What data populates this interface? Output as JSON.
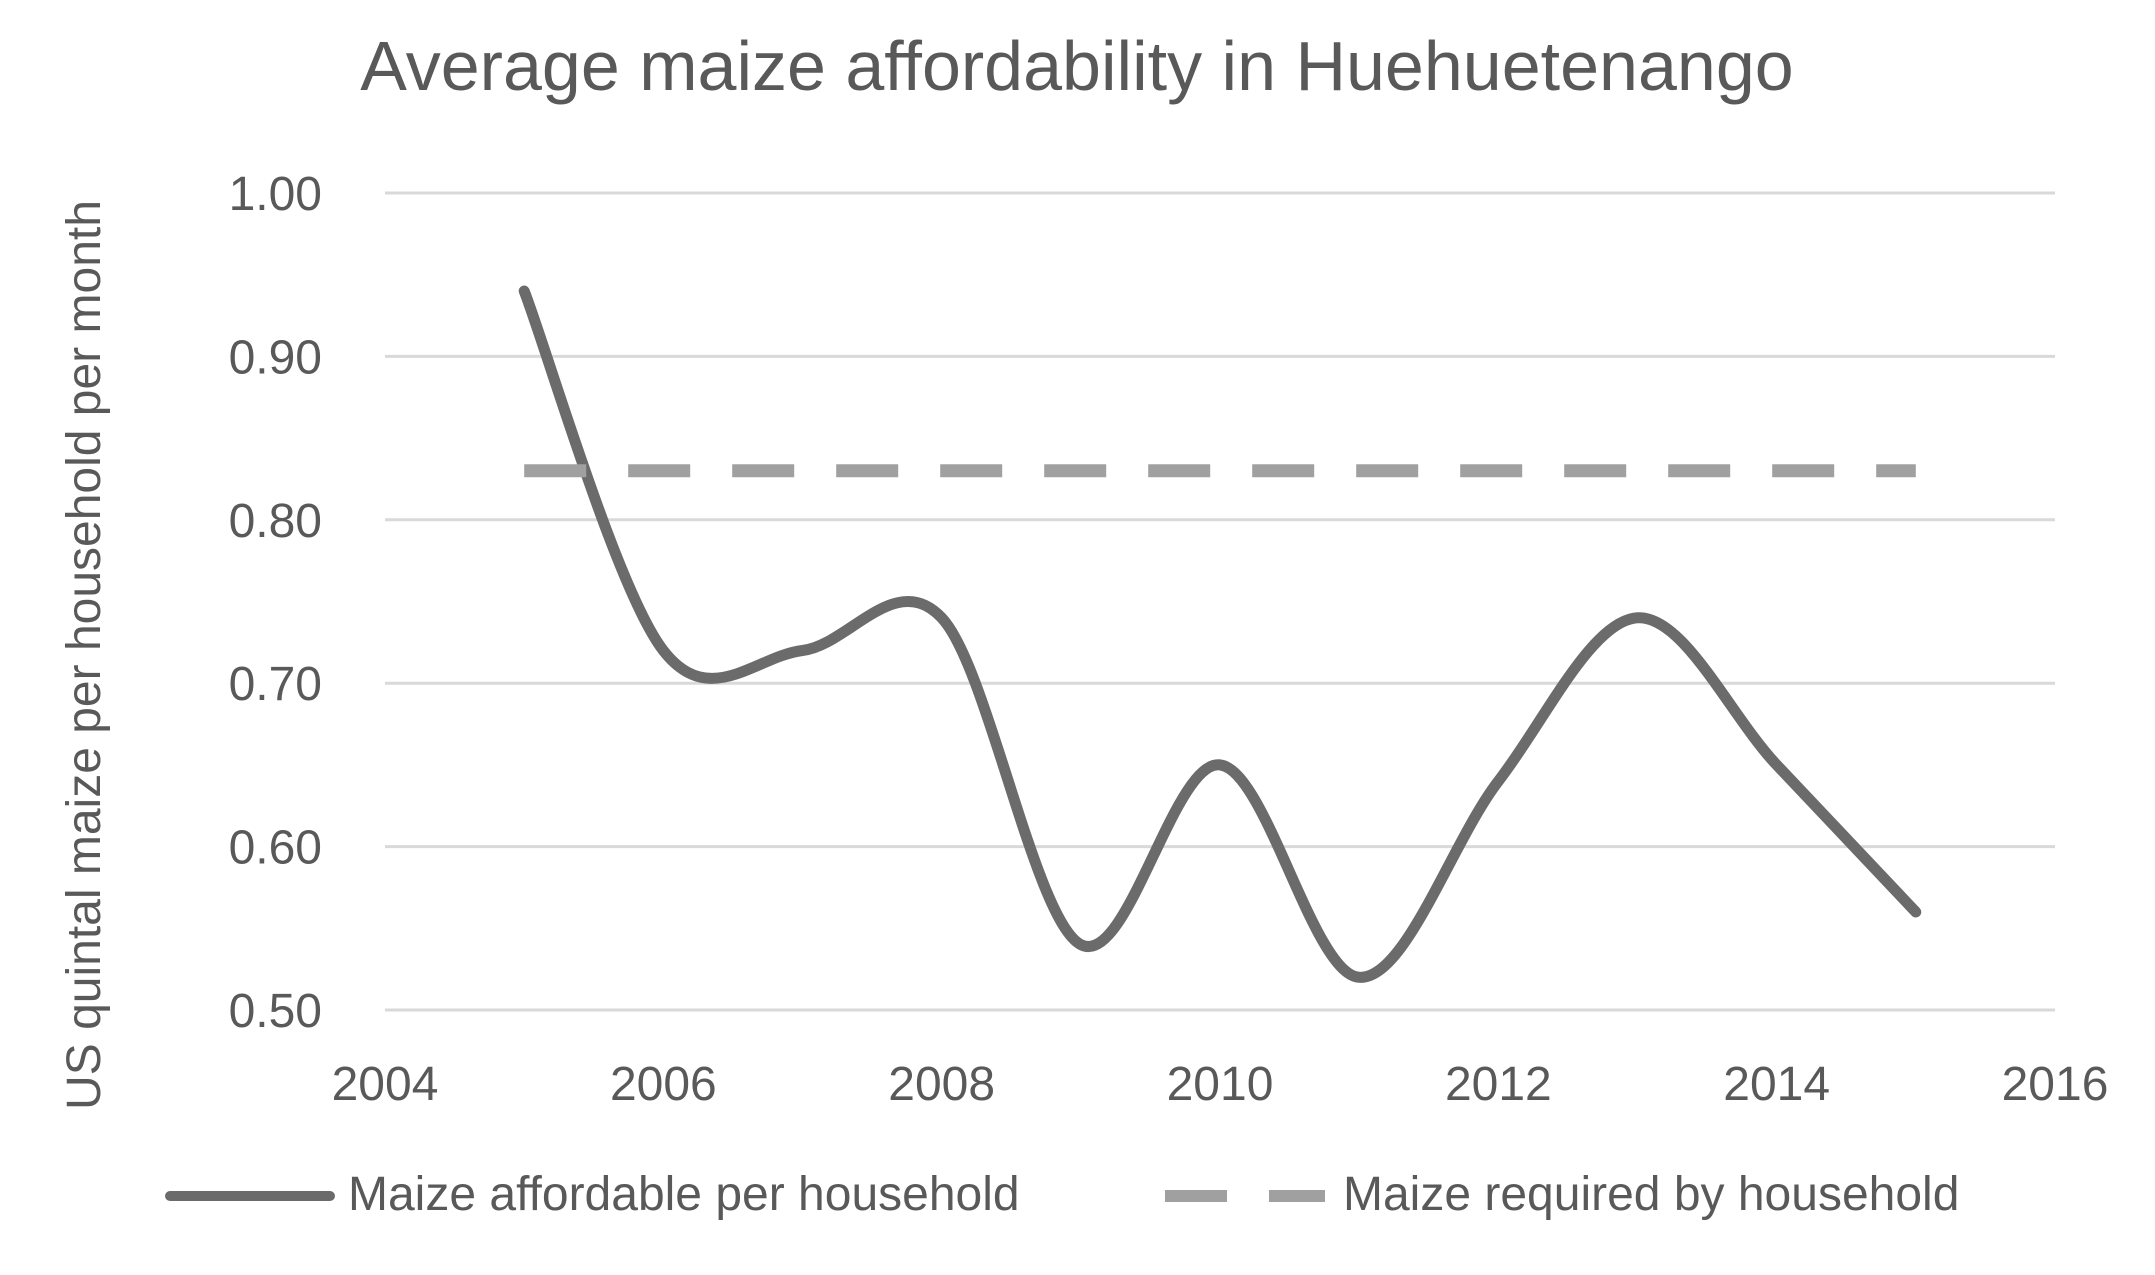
{
  "chart_data": {
    "type": "line",
    "title": "Average maize affordability in Huehuetenango",
    "xlabel": "",
    "ylabel": "US quintal maize per household per month",
    "xlim": [
      2004,
      2016
    ],
    "ylim": [
      0.5,
      1.0
    ],
    "x_ticks": [
      2004,
      2006,
      2008,
      2010,
      2012,
      2014,
      2016
    ],
    "x_tick_labels": [
      "2004",
      "2006",
      "2008",
      "2010",
      "2012",
      "2014",
      "2016"
    ],
    "y_ticks": [
      0.5,
      0.6,
      0.7,
      0.8,
      0.9,
      1.0
    ],
    "y_tick_labels": [
      "0.50",
      "0.60",
      "0.70",
      "0.80",
      "0.90",
      "1.00"
    ],
    "grid": true,
    "legend_position": "bottom",
    "series": [
      {
        "name": "Maize affordable per household",
        "style": "solid",
        "color": "#6b6b6b",
        "x": [
          2005,
          2006,
          2007,
          2008,
          2009,
          2010,
          2011,
          2012,
          2013,
          2014,
          2015
        ],
        "y": [
          0.94,
          0.72,
          0.72,
          0.74,
          0.54,
          0.65,
          0.52,
          0.64,
          0.74,
          0.65,
          0.56
        ]
      },
      {
        "name": "Maize required by household",
        "style": "dashed",
        "color": "#a0a0a0",
        "x": [
          2005,
          2015
        ],
        "y": [
          0.83,
          0.83
        ]
      }
    ]
  }
}
